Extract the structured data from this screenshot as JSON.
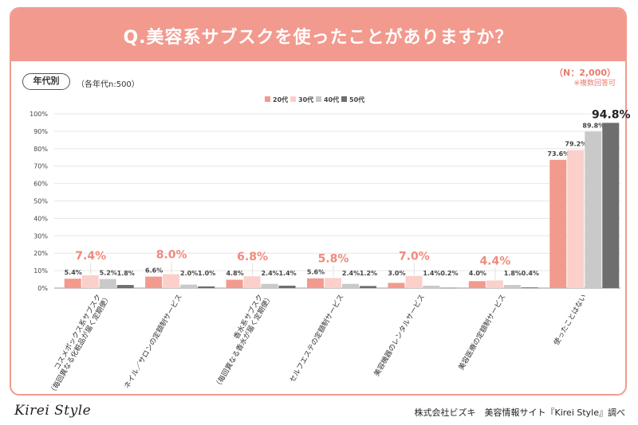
{
  "header": {
    "title": "Q.美容系サブスクを使ったことがありますか？",
    "sample_size": "（N：2,000）",
    "note": "※複数回答可"
  },
  "filter": {
    "label": "年代別",
    "note": "（各年代n:500）"
  },
  "footer": {
    "logo": "Kirei Style",
    "credit": "株式会社ビズキ　美容情報サイト『Kirei Style』調べ"
  },
  "colors": {
    "20代": "#f29a8e",
    "30代": "#fbd0ca",
    "40代": "#c9c9c9",
    "50代": "#6e6e6e",
    "highlight": "#ef8a7c"
  },
  "chart_data": {
    "type": "bar",
    "title": "",
    "xlabel": "",
    "ylabel": "",
    "ylim": [
      0,
      100
    ],
    "y_ticks": [
      "0%",
      "10%",
      "20%",
      "30%",
      "40%",
      "50%",
      "60%",
      "70%",
      "80%",
      "90%",
      "100%"
    ],
    "legend_position": "top-center",
    "categories": [
      [
        "コスメボックス系サブスク",
        "（毎回異なる化粧品が届く定期便）"
      ],
      [
        "ネイル／サロンの定額制サービス"
      ],
      [
        "香水系サブスク",
        "（毎回異なる香水が届く定期便）"
      ],
      [
        "セルフエステの定額制サービス"
      ],
      [
        "美容機器のレンタルサービス"
      ],
      [
        "美容医療の定額制サービス"
      ],
      [
        "使ったことはない"
      ]
    ],
    "series": [
      {
        "name": "20代",
        "values": [
          5.4,
          6.6,
          4.8,
          5.6,
          3.0,
          4.0,
          73.6
        ],
        "labels": [
          "5.4%",
          "6.6%",
          "4.8%",
          "5.6%",
          "3.0%",
          "4.0%",
          "73.6%"
        ]
      },
      {
        "name": "30代",
        "values": [
          7.4,
          8.0,
          6.8,
          5.8,
          7.0,
          4.4,
          79.2
        ],
        "labels": [
          "7.4%",
          "8.0%",
          "6.8%",
          "5.8%",
          "7.0%",
          "4.4%",
          "79.2%"
        ]
      },
      {
        "name": "40代",
        "values": [
          5.2,
          2.0,
          2.4,
          2.4,
          1.4,
          1.8,
          89.8
        ],
        "labels": [
          "5.2%",
          "2.0%",
          "2.4%",
          "2.4%",
          "1.4%",
          "1.8%",
          "89.8%"
        ]
      },
      {
        "name": "50代",
        "values": [
          1.8,
          1.0,
          1.4,
          1.2,
          0.2,
          0.4,
          94.8
        ],
        "labels": [
          "1.8%",
          "1.0%",
          "1.4%",
          "1.2%",
          "0.2%",
          "0.4%",
          "94.8%"
        ]
      }
    ],
    "highlights": [
      {
        "category": 0,
        "series": 1
      },
      {
        "category": 1,
        "series": 1
      },
      {
        "category": 2,
        "series": 1
      },
      {
        "category": 3,
        "series": 1
      },
      {
        "category": 4,
        "series": 1
      },
      {
        "category": 5,
        "series": 1
      },
      {
        "category": 6,
        "series": 3
      }
    ]
  }
}
